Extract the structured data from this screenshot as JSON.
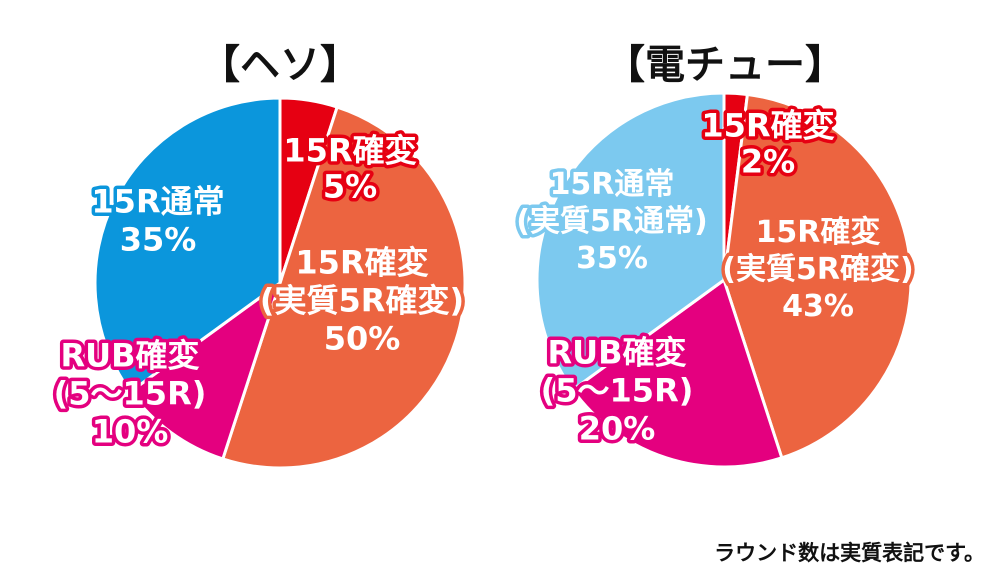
{
  "chart_data": [
    {
      "type": "pie",
      "title": "【ヘソ】",
      "slices": [
        {
          "label_lines": [
            "15R確変",
            "5%"
          ],
          "value": 5,
          "color": "#e60012"
        },
        {
          "label_lines": [
            "15R確変",
            "(実質5R確変)",
            "50%"
          ],
          "value": 50,
          "color": "#ec6440"
        },
        {
          "label_lines": [
            "RUB確変",
            "(5〜15R)",
            "10%"
          ],
          "value": 10,
          "color": "#e4007f"
        },
        {
          "label_lines": [
            "15R通常",
            "35%"
          ],
          "value": 35,
          "color": "#0b96dc"
        }
      ]
    },
    {
      "type": "pie",
      "title": "【電チュー】",
      "slices": [
        {
          "label_lines": [
            "15R確変",
            "2%"
          ],
          "value": 2,
          "color": "#e60012"
        },
        {
          "label_lines": [
            "15R確変",
            "(実質5R確変)",
            "43%"
          ],
          "value": 43,
          "color": "#ec6440"
        },
        {
          "label_lines": [
            "RUB確変",
            "(5〜15R)",
            "20%"
          ],
          "value": 20,
          "color": "#e4007f"
        },
        {
          "label_lines": [
            "15R通常",
            "(実質5R通常)",
            "35%"
          ],
          "value": 35,
          "color": "#7cc9ef"
        }
      ]
    }
  ],
  "footnote": "ラウンド数は実質表記です。"
}
